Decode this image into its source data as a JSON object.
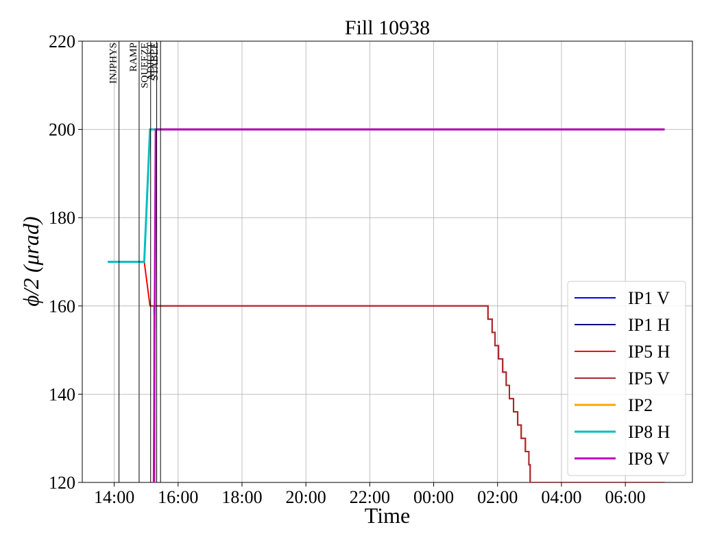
{
  "chart_data": {
    "type": "line",
    "title": "Fill 10938",
    "xlabel": "Time",
    "ylabel": "ϕ/2 (μrad)",
    "xlim": [
      13.0,
      32.1
    ],
    "ylim": [
      120,
      220
    ],
    "xticks": [
      {
        "value": 14,
        "label": "14:00"
      },
      {
        "value": 16,
        "label": "16:00"
      },
      {
        "value": 18,
        "label": "18:00"
      },
      {
        "value": 20,
        "label": "20:00"
      },
      {
        "value": 22,
        "label": "22:00"
      },
      {
        "value": 24,
        "label": "00:00"
      },
      {
        "value": 26,
        "label": "02:00"
      },
      {
        "value": 28,
        "label": "04:00"
      },
      {
        "value": 30,
        "label": "06:00"
      }
    ],
    "yticks": [
      120,
      140,
      160,
      180,
      200,
      220
    ],
    "grid": true,
    "legend": "lower right",
    "events": [
      {
        "label": "INJPHYS",
        "x": 14.15
      },
      {
        "label": "RAMP",
        "x": 14.78
      },
      {
        "label": "SQUEEZE",
        "x": 15.14
      },
      {
        "label": "ADJUST",
        "x": 15.33
      },
      {
        "label": "STABLE",
        "x": 15.45
      }
    ],
    "series": [
      {
        "name": "IP1 V",
        "color": "#0000ff",
        "linewidth": 2,
        "x": [
          15.25,
          15.25
        ],
        "values": [
          160,
          120
        ]
      },
      {
        "name": "IP1 H",
        "color": "#000080",
        "linewidth": 2,
        "x": [
          15.27,
          15.27
        ],
        "values": [
          165,
          120
        ]
      },
      {
        "name": "IP5 H",
        "color": "#ff0000",
        "linewidth": 2,
        "x": [
          13.8,
          14.94,
          15.12,
          25.7,
          25.7,
          25.83,
          25.83,
          25.92,
          25.92,
          26.03,
          26.03,
          26.16,
          26.16,
          26.27,
          26.27,
          26.37,
          26.37,
          26.5,
          26.5,
          26.63,
          26.63,
          26.74,
          26.74,
          26.87,
          26.87,
          26.98,
          26.98,
          27.02,
          27.02,
          31.23
        ],
        "values": [
          170,
          170,
          160,
          160,
          157,
          157,
          154,
          154,
          151,
          151,
          148,
          148,
          145,
          145,
          142,
          142,
          139,
          139,
          136,
          136,
          133,
          133,
          130,
          130,
          127,
          127,
          124,
          124,
          120,
          120
        ]
      },
      {
        "name": "IP5 V",
        "color": "#a52a2a",
        "linewidth": 2,
        "x": [
          15.12,
          25.7,
          25.7,
          25.83,
          25.83,
          25.92,
          25.92,
          26.03,
          26.03,
          26.16,
          26.16,
          26.27,
          26.27,
          26.37,
          26.37,
          26.5,
          26.5,
          26.63,
          26.63,
          26.74,
          26.74,
          26.87,
          26.87,
          26.98,
          26.98,
          27.02,
          27.02,
          31.23
        ],
        "values": [
          160,
          160,
          157,
          157,
          154,
          154,
          151,
          151,
          148,
          148,
          145,
          145,
          142,
          142,
          139,
          139,
          136,
          136,
          133,
          133,
          130,
          130,
          127,
          127,
          124,
          124,
          120,
          120
        ]
      },
      {
        "name": "IP2",
        "color": "#ffa500",
        "linewidth": 3,
        "x": [
          15.26,
          15.26
        ],
        "values": [
          158,
          120
        ]
      },
      {
        "name": "IP8 H",
        "color": "#00bfbf",
        "linewidth": 3,
        "x": [
          13.8,
          14.94,
          15.12,
          31.23
        ],
        "values": [
          170,
          170,
          200,
          200
        ]
      },
      {
        "name": "IP8 V",
        "color": "#bf00bf",
        "linewidth": 3,
        "x": [
          15.24,
          15.3,
          31.23
        ],
        "values": [
          120,
          200,
          200
        ]
      }
    ]
  }
}
